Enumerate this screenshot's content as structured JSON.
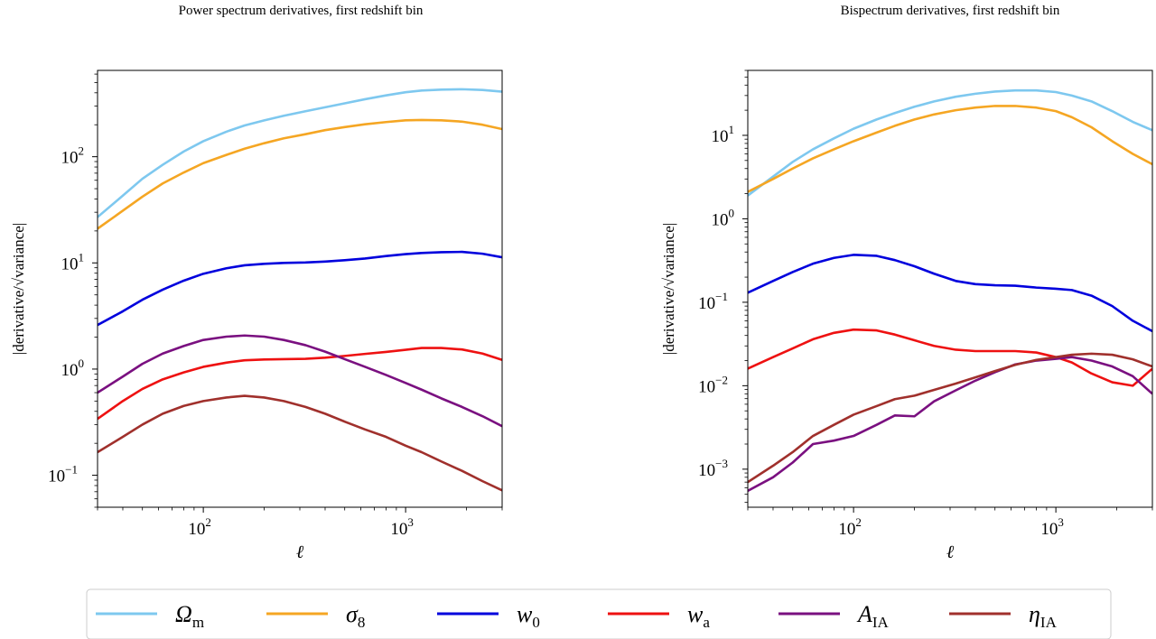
{
  "chart_data": [
    {
      "type": "line",
      "title": "Power spectrum derivatives, first redshift bin",
      "xlabel": "ℓ",
      "ylabel": "|derivative/√variance|",
      "xscale": "log",
      "yscale": "log",
      "xlim": [
        30,
        3000
      ],
      "ylim": [
        0.05,
        650
      ],
      "xticks": [
        {
          "base": "10",
          "exp": "2",
          "value": 100
        },
        {
          "base": "10",
          "exp": "3",
          "value": 1000
        }
      ],
      "yticks": [
        {
          "base": "10",
          "exp": "−1",
          "value": 0.1
        },
        {
          "base": "10",
          "exp": "0",
          "value": 1
        },
        {
          "base": "10",
          "exp": "1",
          "value": 10
        },
        {
          "base": "10",
          "exp": "2",
          "value": 100
        }
      ],
      "grid": false,
      "x": [
        30,
        40,
        50,
        63,
        80,
        100,
        130,
        160,
        200,
        250,
        320,
        400,
        500,
        630,
        800,
        1000,
        1200,
        1500,
        1900,
        2400,
        3000
      ],
      "series": [
        {
          "name": "Ω_m",
          "values": [
            27,
            43,
            62,
            84,
            112,
            140,
            172,
            197,
            220,
            243,
            268,
            292,
            318,
            348,
            378,
            405,
            420,
            428,
            432,
            425,
            410
          ]
        },
        {
          "name": "σ_8",
          "values": [
            21,
            31,
            42,
            56,
            71,
            87,
            104,
            119,
            134,
            149,
            163,
            178,
            190,
            202,
            212,
            220,
            222,
            220,
            214,
            200,
            182
          ]
        },
        {
          "name": "w_0",
          "values": [
            2.6,
            3.5,
            4.5,
            5.6,
            6.8,
            7.9,
            8.9,
            9.5,
            9.8,
            10.0,
            10.1,
            10.3,
            10.6,
            11.0,
            11.6,
            12.1,
            12.4,
            12.6,
            12.7,
            12.2,
            11.3
          ]
        },
        {
          "name": "w_a",
          "values": [
            0.34,
            0.5,
            0.65,
            0.8,
            0.93,
            1.05,
            1.15,
            1.21,
            1.23,
            1.24,
            1.25,
            1.28,
            1.33,
            1.39,
            1.45,
            1.52,
            1.58,
            1.58,
            1.53,
            1.4,
            1.22
          ]
        },
        {
          "name": "A_IA",
          "values": [
            0.6,
            0.85,
            1.12,
            1.4,
            1.65,
            1.88,
            2.02,
            2.07,
            2.02,
            1.88,
            1.68,
            1.46,
            1.24,
            1.05,
            0.88,
            0.74,
            0.64,
            0.53,
            0.44,
            0.36,
            0.29
          ]
        },
        {
          "name": "η_IA",
          "values": [
            0.165,
            0.23,
            0.3,
            0.38,
            0.45,
            0.5,
            0.54,
            0.56,
            0.54,
            0.5,
            0.44,
            0.38,
            0.32,
            0.27,
            0.23,
            0.19,
            0.165,
            0.135,
            0.11,
            0.088,
            0.072
          ]
        }
      ]
    },
    {
      "type": "line",
      "title": "Bispectrum derivatives, first redshift bin",
      "xlabel": "ℓ",
      "ylabel": "|derivative/√variance|",
      "xscale": "log",
      "yscale": "log",
      "xlim": [
        30,
        3000
      ],
      "ylim": [
        0.00035,
        60
      ],
      "xticks": [
        {
          "base": "10",
          "exp": "2",
          "value": 100
        },
        {
          "base": "10",
          "exp": "3",
          "value": 1000
        }
      ],
      "yticks": [
        {
          "base": "10",
          "exp": "−3",
          "value": 0.001
        },
        {
          "base": "10",
          "exp": "−2",
          "value": 0.01
        },
        {
          "base": "10",
          "exp": "−1",
          "value": 0.1
        },
        {
          "base": "10",
          "exp": "0",
          "value": 1
        },
        {
          "base": "10",
          "exp": "1",
          "value": 10
        }
      ],
      "grid": false,
      "x": [
        30,
        40,
        50,
        63,
        80,
        100,
        130,
        160,
        200,
        250,
        320,
        400,
        500,
        630,
        800,
        1000,
        1200,
        1500,
        1900,
        2400,
        3000
      ],
      "series": [
        {
          "name": "Ω_m",
          "values": [
            1.9,
            3.2,
            4.8,
            6.8,
            9.2,
            12,
            15.5,
            18.5,
            22,
            25.5,
            29,
            31.5,
            33.5,
            34.5,
            34.5,
            33,
            30,
            25.5,
            19.5,
            14.5,
            11.5
          ]
        },
        {
          "name": "σ_8",
          "values": [
            2.1,
            3.0,
            4.0,
            5.3,
            6.8,
            8.5,
            10.8,
            13,
            15.5,
            17.8,
            20,
            21.5,
            22.5,
            22.5,
            21.5,
            19.5,
            16.5,
            12.5,
            8.5,
            6.0,
            4.5
          ]
        },
        {
          "name": "w_0",
          "values": [
            0.13,
            0.18,
            0.23,
            0.29,
            0.34,
            0.37,
            0.36,
            0.32,
            0.27,
            0.22,
            0.18,
            0.165,
            0.16,
            0.158,
            0.15,
            0.145,
            0.14,
            0.12,
            0.09,
            0.06,
            0.045
          ]
        },
        {
          "name": "w_a",
          "values": [
            0.016,
            0.022,
            0.028,
            0.036,
            0.043,
            0.047,
            0.046,
            0.041,
            0.035,
            0.03,
            0.027,
            0.026,
            0.026,
            0.026,
            0.025,
            0.022,
            0.019,
            0.014,
            0.011,
            0.01,
            0.016
          ]
        },
        {
          "name": "A_IA",
          "values": [
            0.00055,
            0.0008,
            0.0012,
            0.002,
            0.0022,
            0.0025,
            0.0034,
            0.0044,
            0.0043,
            0.0065,
            0.0088,
            0.0115,
            0.0145,
            0.018,
            0.02,
            0.021,
            0.022,
            0.02,
            0.017,
            0.013,
            0.008
          ]
        },
        {
          "name": "η_IA",
          "values": [
            0.0007,
            0.0011,
            0.0016,
            0.0025,
            0.0034,
            0.0045,
            0.0057,
            0.0069,
            0.0076,
            0.0089,
            0.0106,
            0.0126,
            0.015,
            0.0178,
            0.0204,
            0.022,
            0.0235,
            0.0242,
            0.0235,
            0.0207,
            0.017
          ]
        }
      ]
    }
  ],
  "legend": {
    "placement": "bottom-center",
    "entries": [
      {
        "base": "Ω",
        "sub": "m",
        "color": "#7ec8ef"
      },
      {
        "base": "σ",
        "sub": "8",
        "color": "#f5a623"
      },
      {
        "base": "w",
        "sub": "0",
        "color": "#0000dd"
      },
      {
        "base": "w",
        "sub": "a",
        "color": "#ee1111"
      },
      {
        "base": "A",
        "sub": "IA",
        "color": "#7a1080"
      },
      {
        "base": "η",
        "sub": "IA",
        "color": "#a0302c"
      }
    ]
  },
  "colors": [
    "#7ec8ef",
    "#f5a623",
    "#0000dd",
    "#ee1111",
    "#7a1080",
    "#a0302c"
  ]
}
